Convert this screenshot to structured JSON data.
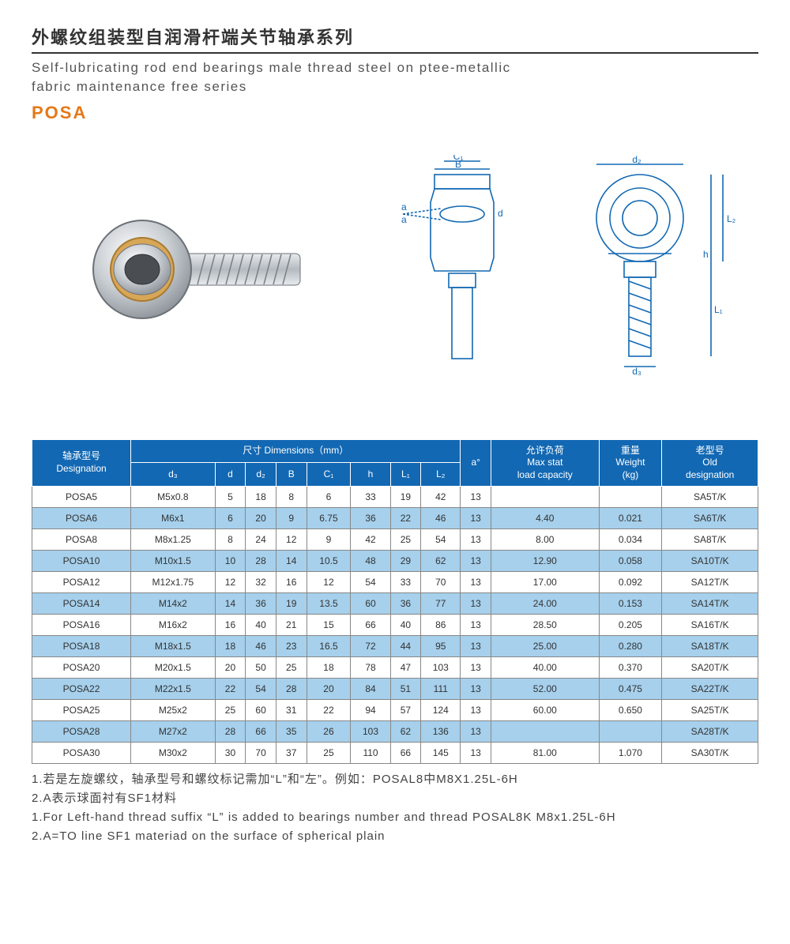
{
  "header": {
    "title_cn": "外螺纹组装型自润滑杆端关节轴承系列",
    "title_en_line1": "Self-lubricating rod end bearings male thread steel on ptee-metallic",
    "title_en_line2": "fabric maintenance free series",
    "series_code": "POSA",
    "series_color": "#e67817"
  },
  "diagram_labels": {
    "B": "B",
    "C1": "C₁",
    "a": "a",
    "d": "d",
    "d2": "d₂",
    "d3": "d₃",
    "h": "h",
    "L1": "L₁",
    "L2": "L₂"
  },
  "table": {
    "header_bg": "#1268b3",
    "header_fg": "#ffffff",
    "row_odd_bg": "#ffffff",
    "row_even_bg": "#a6d0ec",
    "border_color": "#888888",
    "headers": {
      "designation_cn": "轴承型号",
      "designation_en": "Designation",
      "dimensions_cn": "尺寸 Dimensions（mm）",
      "d3": "d₃",
      "d": "d",
      "d2": "d₂",
      "B": "B",
      "C1": "C₁",
      "h": "h",
      "L1": "L₁",
      "L2": "L₂",
      "a_deg": "a°",
      "maxstat_cn": "允许负荷",
      "maxstat_en1": "Max stat",
      "maxstat_en2": "load capacity",
      "weight_cn": "重量",
      "weight_en1": "Weight",
      "weight_en2": "(kg)",
      "old_cn": "老型号",
      "old_en1": "Old",
      "old_en2": "designation"
    },
    "rows": [
      {
        "desig": "POSA5",
        "d3": "M5x0.8",
        "d": "5",
        "d2": "18",
        "B": "8",
        "C1": "6",
        "h": "33",
        "L1": "19",
        "L2": "42",
        "a": "13",
        "max": "",
        "wt": "",
        "old": "SA5T/K"
      },
      {
        "desig": "POSA6",
        "d3": "M6x1",
        "d": "6",
        "d2": "20",
        "B": "9",
        "C1": "6.75",
        "h": "36",
        "L1": "22",
        "L2": "46",
        "a": "13",
        "max": "4.40",
        "wt": "0.021",
        "old": "SA6T/K"
      },
      {
        "desig": "POSA8",
        "d3": "M8x1.25",
        "d": "8",
        "d2": "24",
        "B": "12",
        "C1": "9",
        "h": "42",
        "L1": "25",
        "L2": "54",
        "a": "13",
        "max": "8.00",
        "wt": "0.034",
        "old": "SA8T/K"
      },
      {
        "desig": "POSA10",
        "d3": "M10x1.5",
        "d": "10",
        "d2": "28",
        "B": "14",
        "C1": "10.5",
        "h": "48",
        "L1": "29",
        "L2": "62",
        "a": "13",
        "max": "12.90",
        "wt": "0.058",
        "old": "SA10T/K"
      },
      {
        "desig": "POSA12",
        "d3": "M12x1.75",
        "d": "12",
        "d2": "32",
        "B": "16",
        "C1": "12",
        "h": "54",
        "L1": "33",
        "L2": "70",
        "a": "13",
        "max": "17.00",
        "wt": "0.092",
        "old": "SA12T/K"
      },
      {
        "desig": "POSA14",
        "d3": "M14x2",
        "d": "14",
        "d2": "36",
        "B": "19",
        "C1": "13.5",
        "h": "60",
        "L1": "36",
        "L2": "77",
        "a": "13",
        "max": "24.00",
        "wt": "0.153",
        "old": "SA14T/K"
      },
      {
        "desig": "POSA16",
        "d3": "M16x2",
        "d": "16",
        "d2": "40",
        "B": "21",
        "C1": "15",
        "h": "66",
        "L1": "40",
        "L2": "86",
        "a": "13",
        "max": "28.50",
        "wt": "0.205",
        "old": "SA16T/K"
      },
      {
        "desig": "POSA18",
        "d3": "M18x1.5",
        "d": "18",
        "d2": "46",
        "B": "23",
        "C1": "16.5",
        "h": "72",
        "L1": "44",
        "L2": "95",
        "a": "13",
        "max": "25.00",
        "wt": "0.280",
        "old": "SA18T/K"
      },
      {
        "desig": "POSA20",
        "d3": "M20x1.5",
        "d": "20",
        "d2": "50",
        "B": "25",
        "C1": "18",
        "h": "78",
        "L1": "47",
        "L2": "103",
        "a": "13",
        "max": "40.00",
        "wt": "0.370",
        "old": "SA20T/K"
      },
      {
        "desig": "POSA22",
        "d3": "M22x1.5",
        "d": "22",
        "d2": "54",
        "B": "28",
        "C1": "20",
        "h": "84",
        "L1": "51",
        "L2": "111",
        "a": "13",
        "max": "52.00",
        "wt": "0.475",
        "old": "SA22T/K"
      },
      {
        "desig": "POSA25",
        "d3": "M25x2",
        "d": "25",
        "d2": "60",
        "B": "31",
        "C1": "22",
        "h": "94",
        "L1": "57",
        "L2": "124",
        "a": "13",
        "max": "60.00",
        "wt": "0.650",
        "old": "SA25T/K"
      },
      {
        "desig": "POSA28",
        "d3": "M27x2",
        "d": "28",
        "d2": "66",
        "B": "35",
        "C1": "26",
        "h": "103",
        "L1": "62",
        "L2": "136",
        "a": "13",
        "max": "",
        "wt": "",
        "old": "SA28T/K"
      },
      {
        "desig": "POSA30",
        "d3": "M30x2",
        "d": "30",
        "d2": "70",
        "B": "37",
        "C1": "25",
        "h": "110",
        "L1": "66",
        "L2": "145",
        "a": "13",
        "max": "81.00",
        "wt": "1.070",
        "old": "SA30T/K"
      }
    ]
  },
  "notes": {
    "n1": "1.若是左旋螺纹，轴承型号和螺纹标记需加“L”和“左”。例如：POSAL8中M8X1.25L-6H",
    "n2": "2.A表示球面衬有SF1材料",
    "n3": "1.For Left-hand thread suffix “L” is added to bearings number and thread POSAL8K M8x1.25L-6H",
    "n4": "2.A=TO line SF1 materiad on the surface of spherical plain"
  }
}
